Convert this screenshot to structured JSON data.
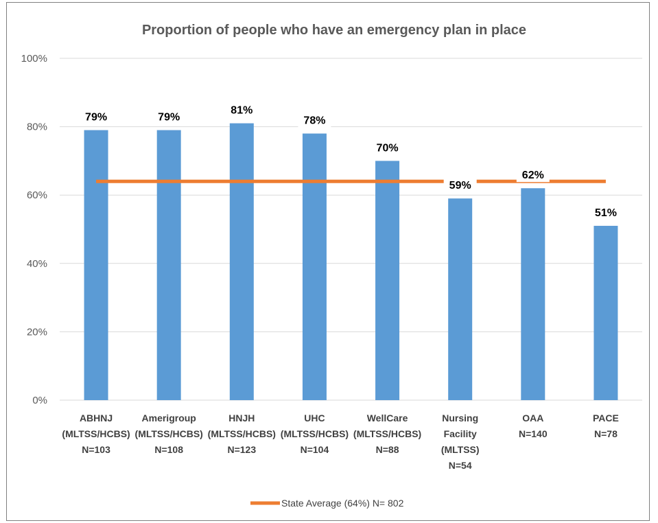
{
  "chart_data": {
    "type": "bar",
    "title": "Proportion of people who have an emergency plan in place",
    "categories": [
      [
        "ABHNJ",
        "(MLTSS/HCBS)",
        "N=103"
      ],
      [
        "Amerigroup",
        "(MLTSS/HCBS)",
        "N=108"
      ],
      [
        "HNJH",
        "(MLTSS/HCBS)",
        "N=123"
      ],
      [
        "UHC",
        "(MLTSS/HCBS)",
        "N=104"
      ],
      [
        "WellCare",
        "(MLTSS/HCBS)",
        "N=88"
      ],
      [
        "Nursing",
        "Facility",
        "(MLTSS)",
        "N=54"
      ],
      [
        "OAA",
        "N=140"
      ],
      [
        "PACE",
        "N=78"
      ]
    ],
    "values": [
      79,
      79,
      81,
      78,
      70,
      59,
      62,
      51
    ],
    "data_labels": [
      "79%",
      "79%",
      "81%",
      "78%",
      "70%",
      "59%",
      "62%",
      "51%"
    ],
    "y_ticks": [
      "0%",
      "20%",
      "40%",
      "60%",
      "80%",
      "100%"
    ],
    "ylim": [
      0,
      100
    ],
    "grid": true,
    "reference_line": {
      "name": "State Average (64%) N= 802",
      "value": 64
    },
    "legend_position": "bottom",
    "colors": {
      "bar": "#5b9bd5",
      "line": "#ed7d31",
      "grid": "#d9d9d9"
    }
  }
}
